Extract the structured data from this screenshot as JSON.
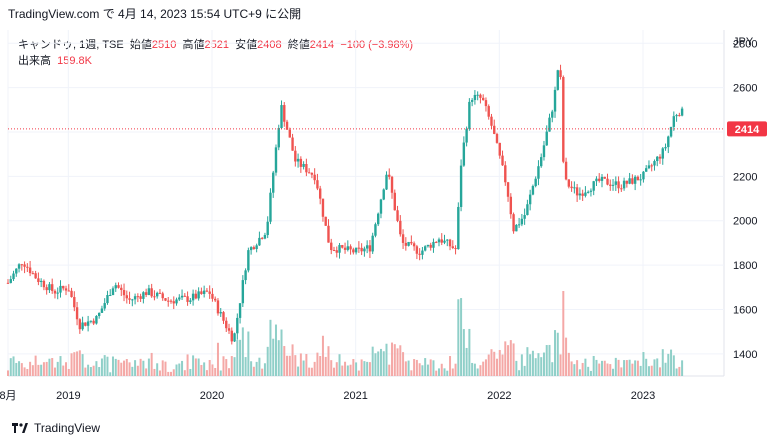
{
  "header": {
    "source_line": "TradingView.com で 4月 14, 2023 15:54 UTC+9 に公開"
  },
  "legend": {
    "symbol": "キャンドゥ, 1週, TSE",
    "open_label": "始値",
    "open": "2510",
    "high_label": "高値",
    "high": "2521",
    "low_label": "安値",
    "low": "2408",
    "close_label": "終値",
    "close": "2414",
    "change": "−100 (−3.98%)",
    "volume_label": "出来高",
    "volume": "159.8K"
  },
  "footer": {
    "brand": "TradingView"
  },
  "colors": {
    "up": "#26a69a",
    "down": "#ef5350",
    "price_line": "#f23645",
    "vol_up": "#8fcfc8",
    "vol_down": "#f4a8a6"
  },
  "chart_data": {
    "type": "candlestick",
    "currency_label": "JPY",
    "last_price_label": "2414",
    "last_price": 2414,
    "y_ticks": [
      "2800",
      "2600",
      "2400",
      "2200",
      "2000",
      "1800",
      "1600",
      "1400"
    ],
    "ylim": [
      1300,
      2860
    ],
    "x_ticks": [
      {
        "label": "8月",
        "date": 2018.58
      },
      {
        "label": "2019",
        "date": 2019.0
      },
      {
        "label": "2020",
        "date": 2020.0
      },
      {
        "label": "2021",
        "date": 2021.0
      },
      {
        "label": "2022",
        "date": 2022.0
      },
      {
        "label": "2023",
        "date": 2023.0
      }
    ],
    "xlim": [
      2018.58,
      2023.55
    ],
    "series_anchors": [
      {
        "date": 2018.58,
        "close": 1720
      },
      {
        "date": 2018.68,
        "close": 1820
      },
      {
        "date": 2018.78,
        "close": 1740
      },
      {
        "date": 2018.9,
        "close": 1680
      },
      {
        "date": 2019.0,
        "close": 1700
      },
      {
        "date": 2019.08,
        "close": 1530
      },
      {
        "date": 2019.2,
        "close": 1560
      },
      {
        "date": 2019.32,
        "close": 1720
      },
      {
        "date": 2019.42,
        "close": 1640
      },
      {
        "date": 2019.55,
        "close": 1680
      },
      {
        "date": 2019.7,
        "close": 1640
      },
      {
        "date": 2019.85,
        "close": 1650
      },
      {
        "date": 2019.98,
        "close": 1680
      },
      {
        "date": 2020.15,
        "close": 1460
      },
      {
        "date": 2020.25,
        "close": 1860
      },
      {
        "date": 2020.38,
        "close": 1960
      },
      {
        "date": 2020.48,
        "close": 2520
      },
      {
        "date": 2020.58,
        "close": 2270
      },
      {
        "date": 2020.72,
        "close": 2200
      },
      {
        "date": 2020.82,
        "close": 1880
      },
      {
        "date": 2021.0,
        "close": 1860
      },
      {
        "date": 2021.1,
        "close": 1880
      },
      {
        "date": 2021.22,
        "close": 2230
      },
      {
        "date": 2021.32,
        "close": 1900
      },
      {
        "date": 2021.45,
        "close": 1860
      },
      {
        "date": 2021.58,
        "close": 1920
      },
      {
        "date": 2021.7,
        "close": 1870
      },
      {
        "date": 2021.73,
        "close": 2240
      },
      {
        "date": 2021.8,
        "close": 2560
      },
      {
        "date": 2021.88,
        "close": 2550
      },
      {
        "date": 2021.95,
        "close": 2420
      },
      {
        "date": 2022.05,
        "close": 2160
      },
      {
        "date": 2022.1,
        "close": 1960
      },
      {
        "date": 2022.18,
        "close": 2030
      },
      {
        "date": 2022.3,
        "close": 2310
      },
      {
        "date": 2022.38,
        "close": 2540
      },
      {
        "date": 2022.42,
        "close": 2750
      },
      {
        "date": 2022.45,
        "close": 2180
      },
      {
        "date": 2022.55,
        "close": 2120
      },
      {
        "date": 2022.7,
        "close": 2180
      },
      {
        "date": 2022.85,
        "close": 2160
      },
      {
        "date": 2023.0,
        "close": 2200
      },
      {
        "date": 2023.15,
        "close": 2320
      },
      {
        "date": 2023.22,
        "close": 2480
      },
      {
        "date": 2023.27,
        "close": 2500
      },
      {
        "date": 2023.285,
        "close": 2414
      }
    ]
  }
}
